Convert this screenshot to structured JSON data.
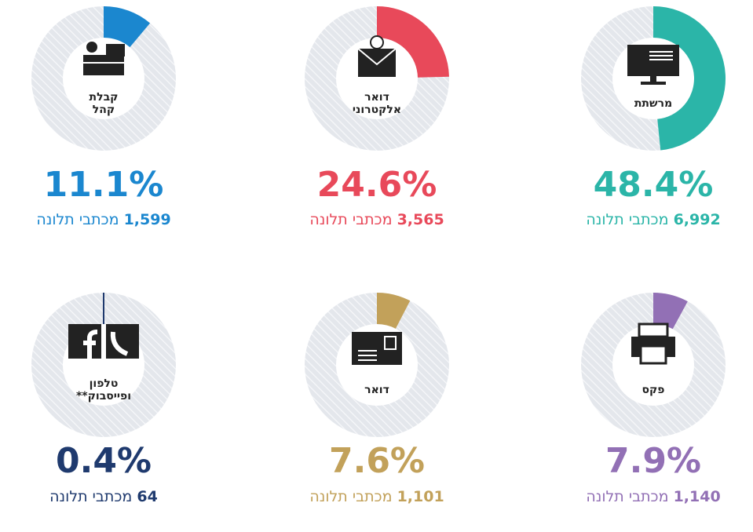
{
  "chart_data": [
    {
      "type": "donut",
      "label_lines": [
        "מרשתת"
      ],
      "values": [
        48.4
      ],
      "value_labels": [
        "48.4%"
      ],
      "count_label": "6,992",
      "unit": "מכתבי תלונה",
      "color": "#2bb5a8"
    },
    {
      "type": "donut",
      "label_lines": [
        "דואר",
        "אלקטרוני"
      ],
      "values": [
        24.6
      ],
      "value_labels": [
        "24.6%"
      ],
      "count_label": "3,565",
      "unit": "מכתבי תלונה",
      "color": "#e8495a"
    },
    {
      "type": "donut",
      "label_lines": [
        "קבלת",
        "קהל"
      ],
      "values": [
        11.1
      ],
      "value_labels": [
        "11.1%"
      ],
      "count_label": "1,599",
      "unit": "מכתבי תלונה",
      "color": "#1b87cf"
    },
    {
      "type": "donut",
      "label_lines": [
        "פקס"
      ],
      "values": [
        7.9
      ],
      "value_labels": [
        "7.9%"
      ],
      "count_label": "1,140",
      "unit": "מכתבי תלונה",
      "color": "#9270b5"
    },
    {
      "type": "donut",
      "label_lines": [
        "דואר"
      ],
      "values": [
        7.6
      ],
      "value_labels": [
        "7.6%"
      ],
      "count_label": "1,101",
      "unit": "מכתבי תלונה",
      "color": "#c2a15a"
    },
    {
      "type": "donut",
      "label_lines": [
        "טלפון",
        "ופייסבוק**"
      ],
      "values": [
        0.4
      ],
      "value_labels": [
        "0.4%"
      ],
      "count_label": "64",
      "unit": "מכתבי תלונה",
      "color": "#1f3a6e"
    }
  ]
}
